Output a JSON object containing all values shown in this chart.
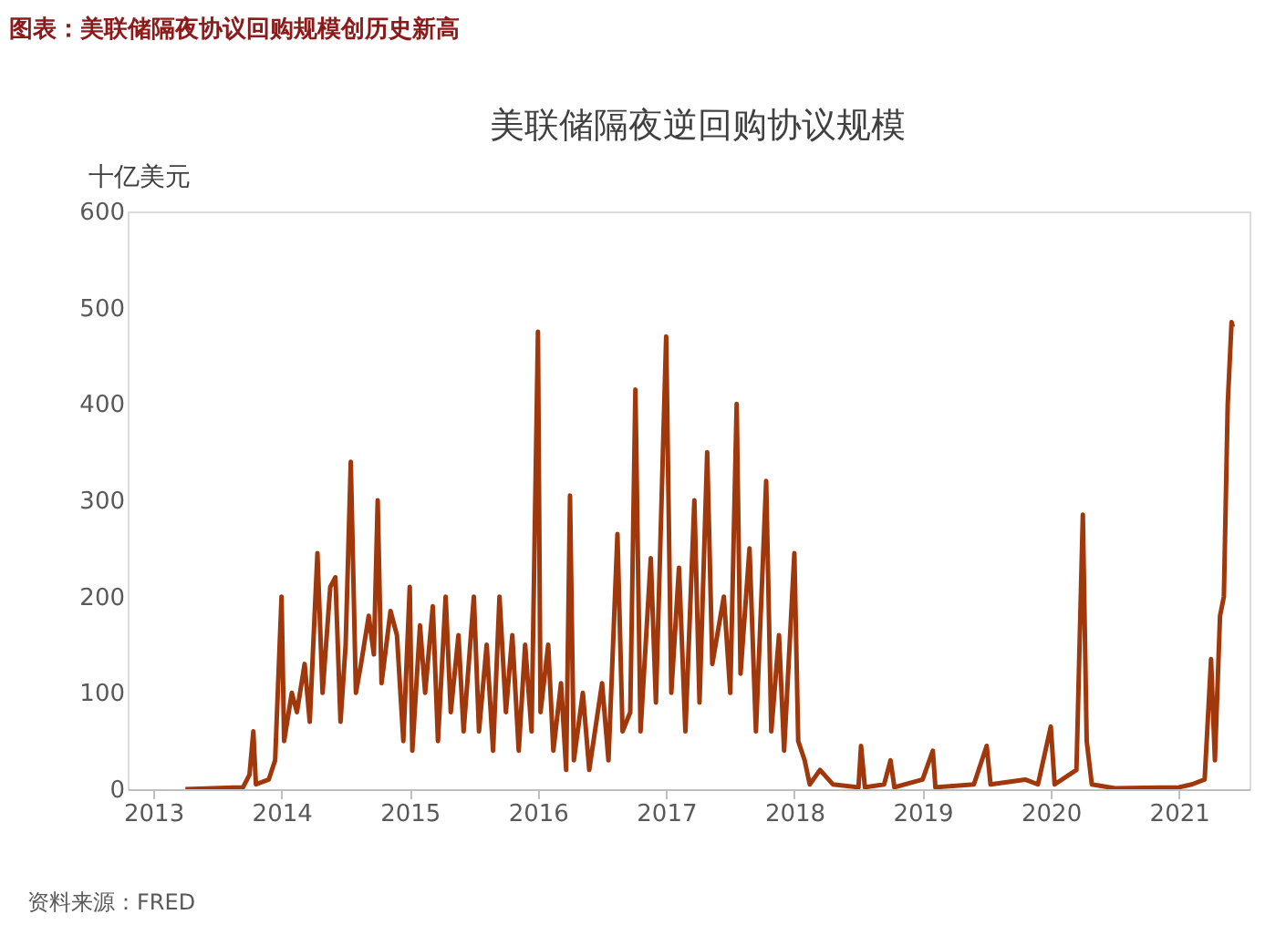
{
  "chart_data": {
    "type": "line",
    "title": "美联储隔夜逆回购协议规模",
    "ylabel": "十亿美元",
    "annotations": [
      "图表：美联储隔夜协议回购规模创历史新高",
      "资料来源：FRED"
    ],
    "x": [
      2013.25,
      2013.7,
      2013.75,
      2013.78,
      2013.8,
      2013.9,
      2013.95,
      2014.0,
      2014.02,
      2014.08,
      2014.12,
      2014.18,
      2014.22,
      2014.28,
      2014.32,
      2014.38,
      2014.42,
      2014.46,
      2014.5,
      2014.54,
      2014.58,
      2014.62,
      2014.68,
      2014.72,
      2014.75,
      2014.78,
      2014.85,
      2014.9,
      2014.95,
      2015.0,
      2015.02,
      2015.08,
      2015.12,
      2015.18,
      2015.22,
      2015.28,
      2015.32,
      2015.38,
      2015.42,
      2015.5,
      2015.54,
      2015.6,
      2015.65,
      2015.7,
      2015.75,
      2015.8,
      2015.85,
      2015.9,
      2015.95,
      2016.0,
      2016.02,
      2016.08,
      2016.12,
      2016.18,
      2016.22,
      2016.25,
      2016.28,
      2016.35,
      2016.4,
      2016.5,
      2016.55,
      2016.62,
      2016.66,
      2016.72,
      2016.76,
      2016.8,
      2016.88,
      2016.92,
      2017.0,
      2017.04,
      2017.1,
      2017.15,
      2017.22,
      2017.26,
      2017.32,
      2017.36,
      2017.45,
      2017.5,
      2017.55,
      2017.58,
      2017.65,
      2017.7,
      2017.78,
      2017.82,
      2017.88,
      2017.92,
      2018.0,
      2018.03,
      2018.08,
      2018.12,
      2018.2,
      2018.3,
      2018.5,
      2018.52,
      2018.55,
      2018.7,
      2018.75,
      2018.78,
      2019.0,
      2019.08,
      2019.1,
      2019.4,
      2019.5,
      2019.53,
      2019.8,
      2019.9,
      2020.0,
      2020.03,
      2020.2,
      2020.25,
      2020.28,
      2020.32,
      2020.5,
      2021.0,
      2021.1,
      2021.2,
      2021.25,
      2021.28,
      2021.32,
      2021.35,
      2021.38,
      2021.41,
      2021.42
    ],
    "series": [
      {
        "color": "#a0380c",
        "values": [
          0,
          2,
          15,
          60,
          5,
          10,
          30,
          200,
          50,
          100,
          80,
          130,
          70,
          245,
          100,
          210,
          220,
          70,
          150,
          340,
          100,
          130,
          180,
          140,
          300,
          110,
          185,
          160,
          50,
          210,
          40,
          170,
          100,
          190,
          50,
          200,
          80,
          160,
          60,
          200,
          60,
          150,
          40,
          200,
          80,
          160,
          40,
          150,
          60,
          475,
          80,
          150,
          40,
          110,
          20,
          305,
          30,
          100,
          20,
          110,
          30,
          265,
          60,
          80,
          415,
          60,
          240,
          90,
          470,
          100,
          230,
          60,
          300,
          90,
          350,
          130,
          200,
          100,
          400,
          120,
          250,
          60,
          320,
          60,
          160,
          40,
          245,
          50,
          30,
          5,
          20,
          5,
          2,
          45,
          2,
          5,
          30,
          2,
          10,
          40,
          2,
          5,
          45,
          5,
          10,
          5,
          65,
          5,
          20,
          285,
          50,
          5,
          1,
          2,
          5,
          10,
          135,
          30,
          180,
          200,
          400,
          485,
          480
        ]
      }
    ],
    "xlim": [
      2012.8,
      2021.55
    ],
    "xticks": [
      2013,
      2014,
      2015,
      2016,
      2017,
      2018,
      2019,
      2020,
      2021
    ],
    "ylim": [
      0,
      600
    ],
    "yticks": [
      0,
      100,
      200,
      300,
      400,
      500,
      600
    ],
    "grid": false,
    "legend": false,
    "marker": "none",
    "line_style": "solid"
  }
}
